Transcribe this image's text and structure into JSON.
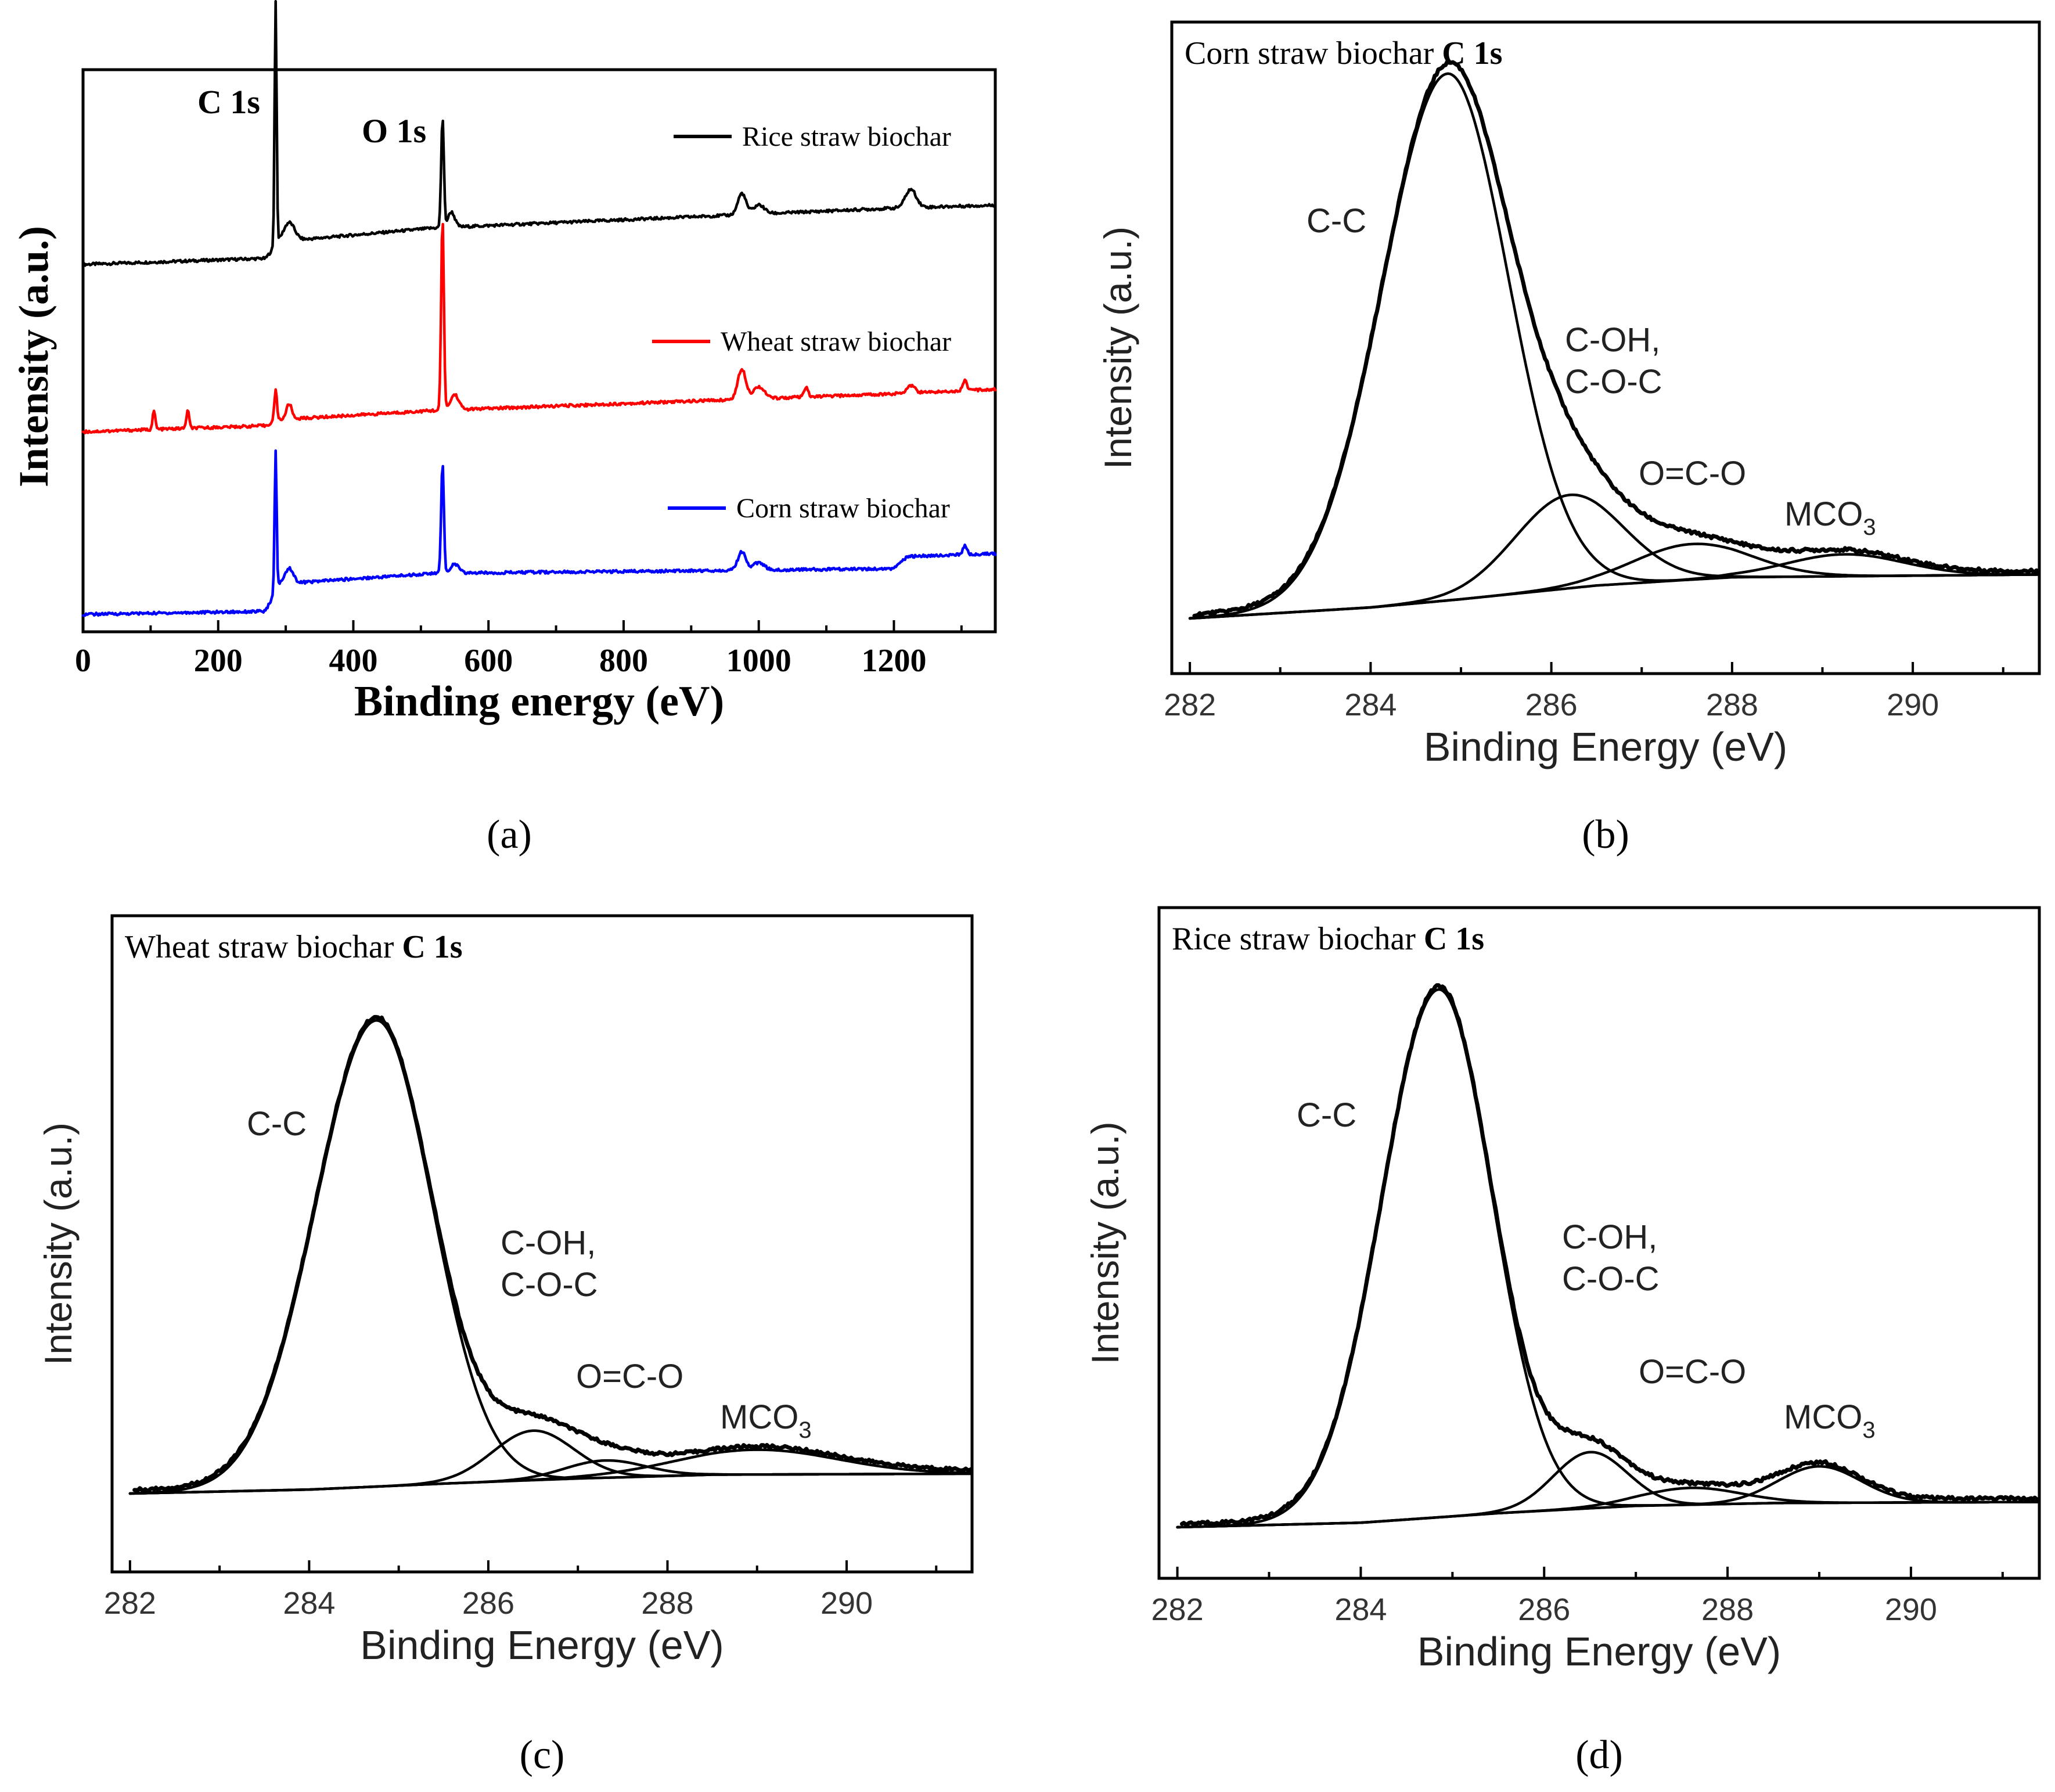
{
  "chart_data": [
    {
      "panel": "a",
      "type": "line",
      "title": "",
      "xlabel": "Binding energy (eV)",
      "ylabel": "Intensity (a.u.)",
      "xlim": [
        0,
        1350
      ],
      "xticks": [
        0,
        200,
        400,
        600,
        800,
        1000,
        1200
      ],
      "yticks": [],
      "caption": "(a)",
      "peak_labels": [
        {
          "text": "C 1s",
          "x": 285
        },
        {
          "text": "O 1s",
          "x": 532
        }
      ],
      "legend_position": "right",
      "series": [
        {
          "name": "Rice straw biochar",
          "color": "#000000",
          "offset": 2.3,
          "baseline": [
            [
              0,
              0.0
            ],
            [
              270,
              0.04
            ],
            [
              290,
              0.15
            ],
            [
              520,
              0.24
            ],
            [
              1200,
              0.37
            ],
            [
              1350,
              0.39
            ]
          ],
          "peaks": [
            [
              285,
              1.6,
              1.5
            ],
            [
              305,
              0.12,
              8
            ],
            [
              532,
              0.72,
              2
            ],
            [
              545,
              0.1,
              5
            ],
            [
              975,
              0.14,
              6
            ],
            [
              1000,
              0.06,
              8
            ],
            [
              1225,
              0.12,
              8
            ]
          ]
        },
        {
          "name": "Wheat straw biochar",
          "color": "#ff0000",
          "offset": 1.2,
          "baseline": [
            [
              0,
              0.0
            ],
            [
              270,
              0.04
            ],
            [
              290,
              0.08
            ],
            [
              520,
              0.14
            ],
            [
              1200,
              0.25
            ],
            [
              1350,
              0.28
            ]
          ],
          "peaks": [
            [
              285,
              0.2,
              2
            ],
            [
              305,
              0.1,
              4
            ],
            [
              105,
              0.12,
              2
            ],
            [
              155,
              0.12,
              2
            ],
            [
              532,
              1.26,
              2
            ],
            [
              550,
              0.1,
              6
            ],
            [
              975,
              0.2,
              6
            ],
            [
              1000,
              0.08,
              8
            ],
            [
              1070,
              0.06,
              3
            ],
            [
              1225,
              0.05,
              6
            ],
            [
              1305,
              0.07,
              3
            ]
          ]
        },
        {
          "name": "Corn straw biochar",
          "color": "#0000ff",
          "offset": 0.0,
          "baseline": [
            [
              0,
              0.0
            ],
            [
              270,
              0.02
            ],
            [
              290,
              0.2
            ],
            [
              520,
              0.27
            ],
            [
              1200,
              0.3
            ],
            [
              1220,
              0.38
            ],
            [
              1350,
              0.4
            ]
          ],
          "peaks": [
            [
              285,
              0.92,
              1.5
            ],
            [
              305,
              0.1,
              6
            ],
            [
              532,
              0.72,
              2
            ],
            [
              550,
              0.06,
              6
            ],
            [
              975,
              0.12,
              6
            ],
            [
              1000,
              0.05,
              8
            ],
            [
              1305,
              0.06,
              3
            ]
          ]
        }
      ]
    },
    {
      "panel": "b",
      "type": "line",
      "title": "Corn straw biochar ",
      "title_bold": "C 1s",
      "xlabel": "Binding Energy (eV)",
      "ylabel": "Intensity (a.u.)",
      "xlim": [
        281.8,
        291.4
      ],
      "xticks": [
        282,
        284,
        286,
        288,
        290
      ],
      "caption": "(b)",
      "background": [
        [
          282.0,
          0.0
        ],
        [
          284.0,
          0.02
        ],
        [
          285.0,
          0.035
        ],
        [
          286.5,
          0.06
        ],
        [
          288.0,
          0.075
        ],
        [
          291.4,
          0.08
        ]
      ],
      "components": [
        {
          "name": "C-C",
          "center": 284.85,
          "amplitude": 0.96,
          "sigma_left": 0.72,
          "sigma_right": 0.67
        },
        {
          "name": "C-OH, C-O-C",
          "label_lines": [
            "C-OH,",
            "C-O-C"
          ],
          "center": 286.2,
          "amplitude": 0.17,
          "sigma_left": 0.6,
          "sigma_right": 0.6
        },
        {
          "name": "O=C-O",
          "center": 287.55,
          "amplitude": 0.065,
          "sigma_left": 0.65,
          "sigma_right": 0.65
        },
        {
          "name": "MCO3",
          "center": 289.25,
          "amplitude": 0.04,
          "sigma_left": 0.65,
          "sigma_right": 0.65
        }
      ]
    },
    {
      "panel": "c",
      "type": "line",
      "title": "Wheat straw biochar ",
      "title_bold": "C 1s",
      "xlabel": "Binding Energy (eV)",
      "ylabel": "Intensity (a.u.)",
      "xlim": [
        281.8,
        291.4
      ],
      "xticks": [
        282,
        284,
        286,
        288,
        290
      ],
      "caption": "(c)",
      "background": [
        [
          282.0,
          0.0
        ],
        [
          284.0,
          0.008
        ],
        [
          285.5,
          0.02
        ],
        [
          287.0,
          0.03
        ],
        [
          288.5,
          0.038
        ],
        [
          291.4,
          0.04
        ]
      ],
      "components": [
        {
          "name": "C-C",
          "center": 284.75,
          "amplitude": 0.94,
          "sigma_left": 0.68,
          "sigma_right": 0.62
        },
        {
          "name": "C-OH, C-O-C",
          "label_lines": [
            "C-OH,",
            "C-O-C"
          ],
          "center": 286.5,
          "amplitude": 0.1,
          "sigma_left": 0.45,
          "sigma_right": 0.45
        },
        {
          "name": "O=C-O",
          "center": 287.3,
          "amplitude": 0.035,
          "sigma_left": 0.45,
          "sigma_right": 0.45
        },
        {
          "name": "MCO3",
          "center": 289.0,
          "amplitude": 0.05,
          "sigma_left": 0.9,
          "sigma_right": 0.9
        }
      ]
    },
    {
      "panel": "d",
      "type": "line",
      "title": "Rice straw biochar ",
      "title_bold": "C 1s",
      "xlabel": "Binding Energy (eV)",
      "ylabel": "Intensity (a.u.)",
      "xlim": [
        281.8,
        291.4
      ],
      "xticks": [
        282,
        284,
        286,
        288,
        290
      ],
      "caption": "(d)",
      "background": [
        [
          282.0,
          0.0
        ],
        [
          284.0,
          0.008
        ],
        [
          285.5,
          0.025
        ],
        [
          287.0,
          0.038
        ],
        [
          288.5,
          0.043
        ],
        [
          291.4,
          0.045
        ]
      ],
      "components": [
        {
          "name": "C-C",
          "center": 284.85,
          "amplitude": 0.94,
          "sigma_left": 0.62,
          "sigma_right": 0.58
        },
        {
          "name": "C-OH, C-O-C",
          "label_lines": [
            "C-OH,",
            "C-O-C"
          ],
          "center": 286.5,
          "amplitude": 0.1,
          "sigma_left": 0.4,
          "sigma_right": 0.4
        },
        {
          "name": "O=C-O",
          "center": 287.6,
          "amplitude": 0.03,
          "sigma_left": 0.55,
          "sigma_right": 0.55
        },
        {
          "name": "MCO3",
          "center": 289.0,
          "amplitude": 0.065,
          "sigma_left": 0.45,
          "sigma_right": 0.45
        }
      ]
    }
  ]
}
